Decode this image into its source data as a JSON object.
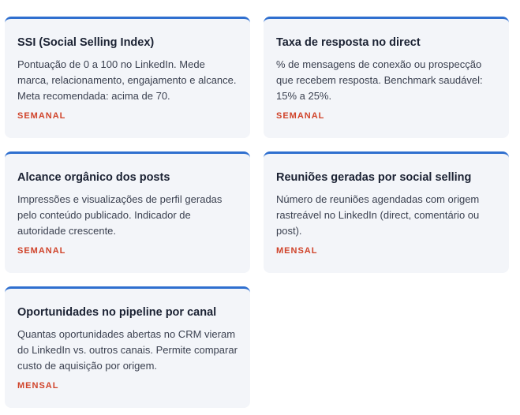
{
  "cards": [
    {
      "title": "SSI (Social Selling Index)",
      "description": "Pontuação de 0 a 100 no LinkedIn. Mede marca, relacionamento, engajamento e alcance. Meta recomendada: acima de 70.",
      "frequency": "SEMANAL"
    },
    {
      "title": "Taxa de resposta no direct",
      "description": "% de mensagens de conexão ou prospecção que recebem resposta. Benchmark saudável: 15% a 25%.",
      "frequency": "SEMANAL"
    },
    {
      "title": "Alcance orgânico dos posts",
      "description": "Impressões e visualizações de perfil geradas pelo conteúdo publicado. Indicador de autoridade crescente.",
      "frequency": "SEMANAL"
    },
    {
      "title": "Reuniões geradas por social selling",
      "description": "Número de reuniões agendadas com origem rastreável no LinkedIn (direct, comentário ou post).",
      "frequency": "MENSAL"
    },
    {
      "title": "Oportunidades no pipeline por canal",
      "description": "Quantas oportunidades abertas no CRM vieram do LinkedIn vs. outros canais. Permite comparar custo de aquisição por origem.",
      "frequency": "MENSAL"
    }
  ]
}
